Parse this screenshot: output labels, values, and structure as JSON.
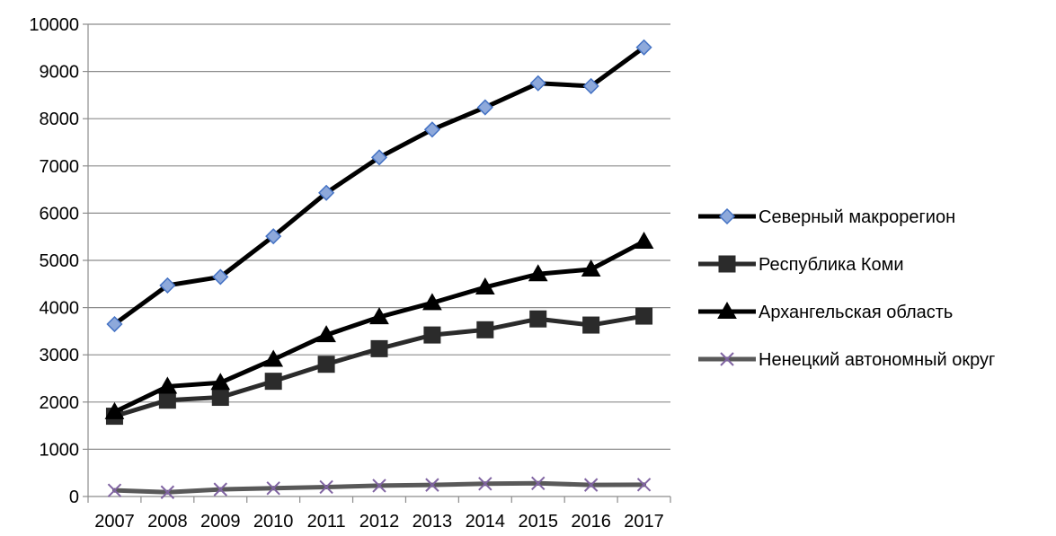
{
  "chart_data": {
    "type": "line",
    "title": "",
    "xlabel": "",
    "ylabel": "",
    "categories": [
      "2007",
      "2008",
      "2009",
      "2010",
      "2011",
      "2012",
      "2013",
      "2014",
      "2015",
      "2016",
      "2017"
    ],
    "ylim": [
      0,
      10000
    ],
    "yticks": [
      0,
      1000,
      2000,
      3000,
      4000,
      5000,
      6000,
      7000,
      8000,
      9000,
      10000
    ],
    "grid": true,
    "legend_position": "right",
    "series": [
      {
        "name": "Северный макрорегион",
        "values": [
          3650,
          4470,
          4650,
          5510,
          6430,
          7180,
          7770,
          8240,
          8750,
          8690,
          9510
        ],
        "line_color": "#000000",
        "marker": "diamond",
        "marker_fill": "#8ea9db",
        "marker_stroke": "#4472c4"
      },
      {
        "name": "Республика Коми",
        "values": [
          1700,
          2040,
          2100,
          2440,
          2800,
          3130,
          3420,
          3530,
          3760,
          3630,
          3820
        ],
        "line_color": "#2b2b2b",
        "marker": "square",
        "marker_fill": "#2b2b2b",
        "marker_stroke": "#2b2b2b"
      },
      {
        "name": "Архангельская область",
        "values": [
          1790,
          2330,
          2410,
          2900,
          3420,
          3800,
          4100,
          4430,
          4710,
          4810,
          5400
        ],
        "line_color": "#000000",
        "marker": "triangle",
        "marker_fill": "#000000",
        "marker_stroke": "#000000"
      },
      {
        "name": "Ненецкий автономный округ",
        "values": [
          130,
          90,
          150,
          175,
          200,
          230,
          245,
          270,
          280,
          245,
          250
        ],
        "line_color": "#595959",
        "marker": "x",
        "marker_fill": "none",
        "marker_stroke": "#8064a2"
      }
    ]
  }
}
